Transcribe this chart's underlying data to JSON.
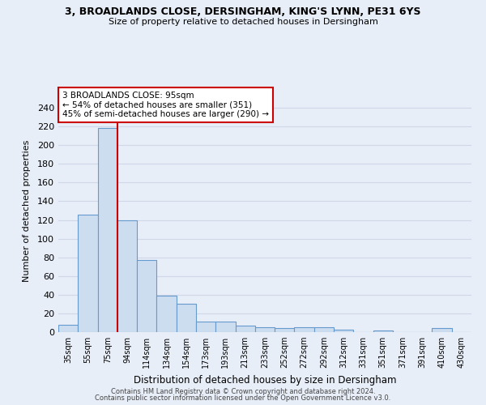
{
  "title1": "3, BROADLANDS CLOSE, DERSINGHAM, KING'S LYNN, PE31 6YS",
  "title2": "Size of property relative to detached houses in Dersingham",
  "xlabel": "Distribution of detached houses by size in Dersingham",
  "ylabel": "Number of detached properties",
  "categories": [
    "35sqm",
    "55sqm",
    "75sqm",
    "94sqm",
    "114sqm",
    "134sqm",
    "154sqm",
    "173sqm",
    "193sqm",
    "213sqm",
    "233sqm",
    "252sqm",
    "272sqm",
    "292sqm",
    "312sqm",
    "331sqm",
    "351sqm",
    "371sqm",
    "391sqm",
    "410sqm",
    "430sqm"
  ],
  "values": [
    8,
    126,
    218,
    120,
    77,
    39,
    30,
    11,
    11,
    7,
    5,
    4,
    5,
    5,
    3,
    0,
    2,
    0,
    0,
    4,
    0
  ],
  "bar_color": "#ccddf0",
  "bar_edge_color": "#6699cc",
  "property_line_index": 2,
  "property_line_color": "#cc0000",
  "annotation_text": "3 BROADLANDS CLOSE: 95sqm\n← 54% of detached houses are smaller (351)\n45% of semi-detached houses are larger (290) →",
  "annotation_box_color": "#ffffff",
  "annotation_box_edge": "#cc0000",
  "footer1": "Contains HM Land Registry data © Crown copyright and database right 2024.",
  "footer2": "Contains public sector information licensed under the Open Government Licence v3.0.",
  "ylim": [
    0,
    260
  ],
  "yticks": [
    0,
    20,
    40,
    60,
    80,
    100,
    120,
    140,
    160,
    180,
    200,
    220,
    240
  ],
  "background_color": "#e8eef8",
  "grid_color": "#d0d8e8"
}
